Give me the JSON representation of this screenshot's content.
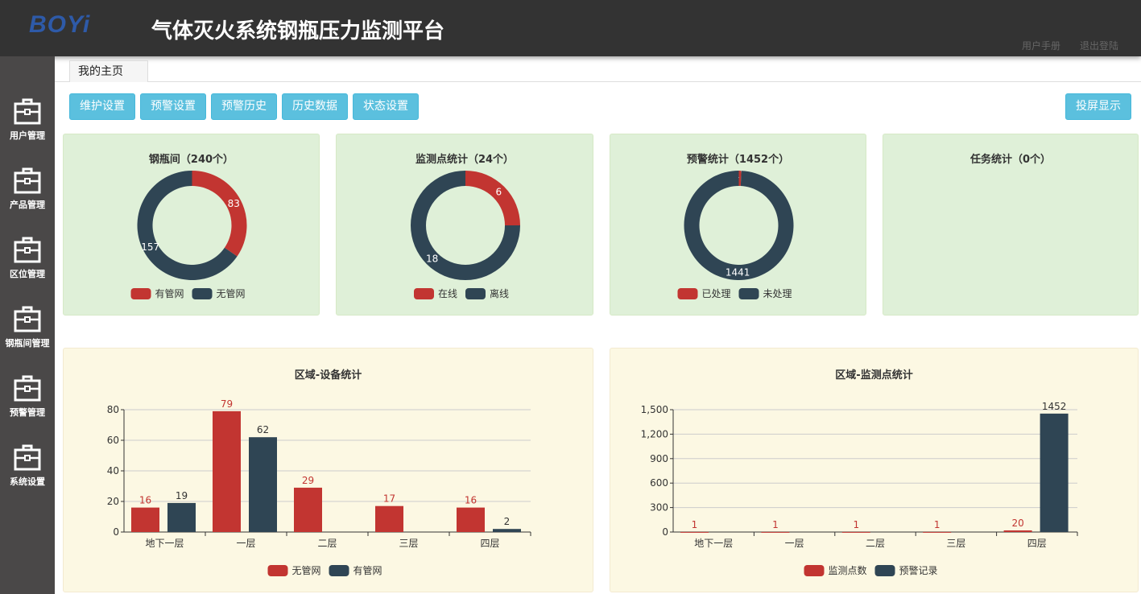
{
  "header": {
    "logo": "BOYi",
    "title": "气体灭火系统钢瓶压力监测平台",
    "links": [
      "用户手册",
      "退出登陆"
    ]
  },
  "sidebar": {
    "items": [
      {
        "label": "用户管理",
        "icon": "briefcase-icon"
      },
      {
        "label": "产品管理",
        "icon": "briefcase-icon"
      },
      {
        "label": "区位管理",
        "icon": "briefcase-icon"
      },
      {
        "label": "钢瓶间管理",
        "icon": "briefcase-icon"
      },
      {
        "label": "预警管理",
        "icon": "briefcase-icon"
      },
      {
        "label": "系统设置",
        "icon": "briefcase-icon"
      }
    ]
  },
  "tabs": [
    {
      "label": "我的主页"
    }
  ],
  "toolbar": {
    "buttons": [
      "维护设置",
      "预警设置",
      "预警历史",
      "历史数据",
      "状态设置"
    ],
    "fullscreen": "投屏显示"
  },
  "colors": {
    "red": "#c23531",
    "dark": "#2f4554",
    "accent": "#5bc0de",
    "green_card": "#dff0d8",
    "yellow_card": "#fcf8e3"
  },
  "chart_data": [
    {
      "type": "pie",
      "title": "钢瓶间（240个）",
      "legend": [
        "有管网",
        "无管网"
      ],
      "values": [
        83,
        157
      ]
    },
    {
      "type": "pie",
      "title": "监测点统计（24个）",
      "legend": [
        "在线",
        "离线"
      ],
      "values": [
        6,
        18
      ]
    },
    {
      "type": "pie",
      "title": "预警统计（1452个）",
      "legend": [
        "已处理",
        "未处理"
      ],
      "values": [
        11,
        1441
      ]
    },
    {
      "type": "pie",
      "title": "任务统计（0个）",
      "legend": [],
      "values": []
    },
    {
      "type": "bar",
      "title": "区域-设备统计",
      "categories": [
        "地下一层",
        "一层",
        "二层",
        "三层",
        "四层"
      ],
      "series": [
        {
          "name": "无管网",
          "values": [
            16,
            79,
            29,
            17,
            16
          ]
        },
        {
          "name": "有管网",
          "values": [
            19,
            62,
            null,
            null,
            2
          ]
        }
      ],
      "ylim": [
        0,
        80
      ],
      "yticks": [
        "0",
        "20",
        "40",
        "60",
        "80"
      ],
      "grid": true,
      "legend_position": "bottom"
    },
    {
      "type": "bar",
      "title": "区域-监测点统计",
      "categories": [
        "地下一层",
        "一层",
        "二层",
        "三层",
        "四层"
      ],
      "series": [
        {
          "name": "监测点数",
          "values": [
            1,
            1,
            1,
            1,
            20
          ]
        },
        {
          "name": "预警记录",
          "values": [
            null,
            null,
            null,
            null,
            1452
          ]
        }
      ],
      "ylim": [
        0,
        1500
      ],
      "yticks": [
        "0",
        "300",
        "600",
        "900",
        "1,200",
        "1,500"
      ],
      "grid": true,
      "legend_position": "bottom"
    }
  ]
}
